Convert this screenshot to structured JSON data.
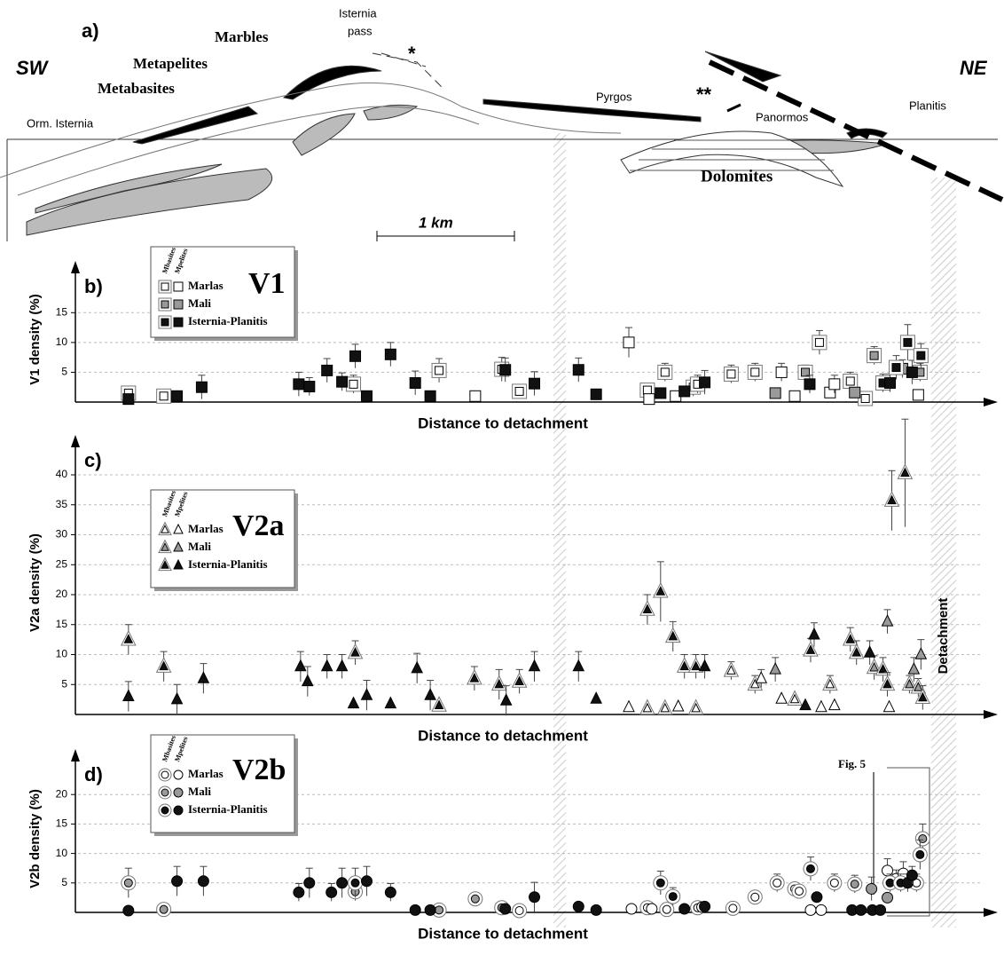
{
  "cross_section": {
    "panel": "a)",
    "sw": "SW",
    "ne": "NE",
    "marbles": "Marbles",
    "metapelites": "Metapelites",
    "metabasites": "Metabasites",
    "pass_1": "Isternia",
    "pass_2": "pass",
    "orm": "Orm. Isternia",
    "pyrgos": "Pyrgos",
    "panormos": "Panormos",
    "planitis": "Planitis",
    "dolomites": "Dolomites",
    "scale": "1 km",
    "star1": "*",
    "star2": "**"
  },
  "chart_data": [
    {
      "type": "scatter",
      "panel": "b)",
      "title": "V1",
      "marker": "square",
      "ylabel": "V1 density (%)",
      "xlabel": "Distance to detachment",
      "xlim": [
        0,
        100
      ],
      "ylim": [
        0,
        21
      ],
      "yticks": [
        5,
        10,
        15
      ],
      "grid": true,
      "legend_columns": [
        "Mbasites",
        "Mpelites"
      ],
      "series": [
        {
          "name": "Marlas",
          "color": "#ffffff",
          "x": [
            3.5,
            7.5,
            29,
            38.7,
            42.8,
            45.8,
            47.8,
            60.2,
            62.3,
            62.5,
            64.3,
            65.5,
            67.5,
            68,
            71.8,
            74.5,
            77.5,
            79,
            81.8,
            83,
            83.5,
            85.3,
            87,
            93
          ],
          "values": [
            1.5,
            1,
            3,
            5.3,
            1,
            5.5,
            1.8,
            10,
            2,
            0.5,
            5,
            1,
            2.5,
            3,
            4.7,
            5,
            5,
            1,
            10,
            1.6,
            3,
            3.5,
            0.6,
            1.2
          ],
          "errors": [
            null,
            null,
            1.5,
            2,
            null,
            2,
            null,
            2.5,
            null,
            null,
            1.5,
            null,
            1.5,
            1.5,
            1.5,
            1.5,
            1.5,
            null,
            2,
            null,
            1.5,
            1.5,
            null,
            null
          ],
          "framed": [
            true,
            true,
            true,
            true,
            false,
            true,
            true,
            false,
            true,
            false,
            true,
            false,
            true,
            true,
            true,
            true,
            false,
            false,
            true,
            false,
            false,
            true,
            true,
            false
          ]
        },
        {
          "name": "Mali",
          "color": "#999999",
          "x": [
            76.8,
            80.2,
            85.8,
            88,
            91.2,
            93.2
          ],
          "values": [
            1.5,
            5,
            1.6,
            7.8,
            5.6,
            5
          ],
          "errors": [
            null,
            1.2,
            null,
            1.5,
            1.5,
            1.5
          ],
          "framed": [
            false,
            true,
            false,
            true,
            false,
            true
          ]
        },
        {
          "name": "Isternia-Planitis",
          "color": "#111111",
          "x": [
            3.5,
            9,
            11.8,
            22.8,
            24,
            26,
            27.7,
            29.2,
            30.5,
            33.2,
            36,
            37.7,
            46.2,
            49.5,
            54.5,
            56.5,
            63.8,
            66.5,
            68.8,
            80.7,
            89,
            89.8,
            90.5,
            91.8,
            92.3,
            93.3
          ],
          "values": [
            0.5,
            1,
            2.5,
            3,
            2.6,
            5.3,
            3.4,
            7.7,
            1,
            8,
            3.2,
            1,
            5.4,
            3.1,
            5.4,
            1.3,
            1.5,
            1.8,
            3.3,
            3,
            3.2,
            3.2,
            5.8,
            10,
            5,
            7.8
          ],
          "errors": [
            null,
            null,
            2,
            2,
            1.5,
            2,
            1.5,
            2,
            null,
            2,
            2,
            null,
            2,
            2,
            2,
            null,
            null,
            null,
            2,
            1.5,
            1.5,
            1.5,
            2,
            3,
            2,
            2
          ],
          "framed": [
            false,
            false,
            false,
            false,
            false,
            false,
            false,
            false,
            false,
            false,
            false,
            false,
            false,
            false,
            false,
            false,
            false,
            false,
            false,
            false,
            true,
            false,
            true,
            true,
            false,
            true
          ]
        }
      ]
    },
    {
      "type": "scatter",
      "panel": "c)",
      "title": "V2a",
      "marker": "triangle",
      "ylabel": "V2a density (%)",
      "xlabel": "Distance to detachment",
      "annotation": "Detachment",
      "xlim": [
        0,
        100
      ],
      "ylim": [
        0,
        44
      ],
      "yticks": [
        5,
        10,
        15,
        20,
        25,
        30,
        35,
        40
      ],
      "grid": true,
      "legend_columns": [
        "Mbasites",
        "Mpelites"
      ],
      "series": [
        {
          "name": "Marlas",
          "color": "#ffffff",
          "x": [
            60.2,
            62.3,
            64.3,
            65.8,
            67.8,
            71.8,
            74.5,
            75.2,
            77.5,
            79,
            82,
            83,
            83.5,
            89.7
          ],
          "values": [
            1.2,
            1,
            1,
            1.3,
            1,
            7.3,
            5,
            6,
            2.6,
            2.5,
            1.2,
            5,
            1.5,
            1.2
          ],
          "errors": [
            null,
            null,
            null,
            null,
            null,
            1.5,
            1.5,
            1.5,
            null,
            null,
            null,
            1.5,
            null,
            null
          ],
          "framed": [
            false,
            true,
            true,
            false,
            true,
            true,
            true,
            false,
            false,
            true,
            false,
            true,
            false,
            false
          ]
        },
        {
          "name": "Mali",
          "color": "#999999",
          "x": [
            76.8,
            88,
            89.5,
            92,
            92.5,
            93,
            93.3
          ],
          "values": [
            7.5,
            7.8,
            15.5,
            5,
            7.5,
            4.5,
            10
          ],
          "errors": [
            2,
            2,
            2,
            1.5,
            2,
            1.5,
            2.5
          ],
          "framed": [
            false,
            true,
            false,
            true,
            false,
            true,
            false
          ]
        },
        {
          "name": "Isternia-Planitis",
          "color": "#111111",
          "x": [
            3.5,
            3.5,
            7.5,
            9,
            12,
            23,
            23.8,
            26,
            27.7,
            29.2,
            29,
            30.5,
            33.2,
            36.2,
            37.7,
            38.7,
            42.7,
            45.5,
            46.3,
            47.8,
            49.5,
            54.5,
            56.5,
            62.3,
            63.8,
            65.2,
            66.5,
            67.8,
            68.8,
            80.2,
            80.8,
            81.2,
            85.3,
            86,
            87.5,
            89,
            89.5,
            90,
            91.5,
            93.5
          ],
          "values": [
            12.5,
            3,
            8,
            2.5,
            6,
            8,
            5.5,
            8,
            8,
            10.3,
            1.8,
            3.2,
            1.8,
            7.7,
            3.2,
            1.5,
            6,
            5,
            2.3,
            5.5,
            8,
            8,
            2.6,
            17.5,
            20.5,
            13,
            8,
            8,
            8,
            1.5,
            10.7,
            13.3,
            12.5,
            10.3,
            10.3,
            7.5,
            5,
            35.7,
            40.3,
            2.8
          ],
          "errors": [
            2.5,
            2.5,
            2.5,
            2.5,
            2.5,
            2.5,
            2.5,
            2,
            2,
            2,
            null,
            2.5,
            null,
            2.5,
            2.5,
            null,
            2,
            2.5,
            2.5,
            2,
            2.5,
            2.5,
            null,
            2.5,
            5,
            2.5,
            2,
            2,
            2,
            null,
            2,
            2,
            2,
            2,
            2,
            2,
            2,
            5,
            9,
            2
          ],
          "framed": [
            true,
            false,
            true,
            false,
            false,
            false,
            false,
            false,
            false,
            true,
            false,
            false,
            false,
            false,
            false,
            true,
            true,
            true,
            false,
            true,
            false,
            false,
            false,
            true,
            true,
            true,
            true,
            true,
            false,
            false,
            true,
            false,
            true,
            true,
            false,
            true,
            true,
            true,
            true,
            true
          ]
        }
      ]
    },
    {
      "type": "scatter",
      "panel": "d)",
      "title": "V2b",
      "marker": "circle",
      "ylabel": "V2b density (%)",
      "xlabel": "Distance to detachment",
      "annotation": "Fig. 5",
      "xlim": [
        0,
        100
      ],
      "ylim": [
        0,
        25
      ],
      "yticks": [
        5,
        10,
        15,
        20
      ],
      "grid": true,
      "legend_columns": [
        "Mbasites",
        "Mpelites"
      ],
      "series": [
        {
          "name": "Marlas",
          "color": "#ffffff",
          "x": [
            47.8,
            60.5,
            62.3,
            62.8,
            64.5,
            68,
            68.5,
            72,
            74.5,
            77,
            79,
            79.5,
            80.8,
            82,
            83.5,
            89.5,
            90.5,
            91.3,
            92.8
          ],
          "values": [
            0.3,
            0.6,
            0.8,
            0.6,
            0.5,
            0.8,
            0.9,
            0.7,
            2.6,
            5,
            4,
            3.6,
            0.4,
            0.4,
            5,
            7.1,
            5.7,
            6.6,
            5
          ],
          "errors": [
            null,
            null,
            null,
            null,
            null,
            null,
            null,
            null,
            1,
            1.5,
            1,
            1,
            null,
            null,
            1.5,
            2,
            1.5,
            2,
            1.5
          ],
          "framed": [
            true,
            false,
            true,
            false,
            true,
            true,
            false,
            true,
            true,
            true,
            true,
            true,
            false,
            false,
            true,
            false,
            false,
            false,
            true
          ]
        },
        {
          "name": "Mali",
          "color": "#999999",
          "x": [
            3.5,
            7.5,
            29.2,
            38.7,
            42.8,
            45.8,
            85.8,
            87.7,
            89.5,
            93.5
          ],
          "values": [
            5,
            0.5,
            3.5,
            0.4,
            2.3,
            0.8,
            4.8,
            4,
            2.5,
            12.5
          ],
          "errors": [
            2.5,
            null,
            1.5,
            null,
            null,
            null,
            1.5,
            2,
            null,
            2.5
          ],
          "framed": [
            true,
            true,
            true,
            true,
            true,
            true,
            true,
            false,
            false,
            true
          ]
        },
        {
          "name": "Isternia-Planitis",
          "color": "#111111",
          "x": [
            3.5,
            9,
            12,
            22.8,
            24,
            26.5,
            27.7,
            29.2,
            30.5,
            33.2,
            36,
            37.7,
            46.2,
            49.5,
            54.5,
            56.5,
            63.8,
            65.2,
            66.5,
            68.8,
            80.8,
            81.5,
            85.5,
            86.5,
            87.8,
            88.7,
            89.8,
            91,
            91.8,
            92.3,
            93.2
          ],
          "values": [
            0.3,
            5.3,
            5.3,
            3.4,
            5,
            3.4,
            5,
            5,
            5.3,
            3.4,
            0.4,
            0.4,
            0.6,
            2.6,
            1,
            0.4,
            5,
            2.7,
            0.6,
            1,
            7.4,
            2.6,
            0.4,
            0.4,
            0.4,
            0.4,
            5,
            5,
            5,
            6.3,
            9.8
          ],
          "errors": [
            null,
            2.5,
            2.5,
            1.5,
            2.5,
            1.5,
            2.5,
            2.5,
            2.5,
            1.5,
            null,
            null,
            null,
            2.5,
            null,
            null,
            2,
            1.5,
            null,
            null,
            2,
            null,
            null,
            null,
            null,
            null,
            1.5,
            1.5,
            1.5,
            1.5,
            2.5
          ],
          "framed": [
            false,
            false,
            false,
            false,
            false,
            false,
            false,
            true,
            false,
            false,
            false,
            false,
            false,
            false,
            false,
            false,
            true,
            true,
            false,
            false,
            true,
            false,
            false,
            false,
            false,
            false,
            true,
            true,
            false,
            false,
            true
          ]
        }
      ]
    }
  ]
}
